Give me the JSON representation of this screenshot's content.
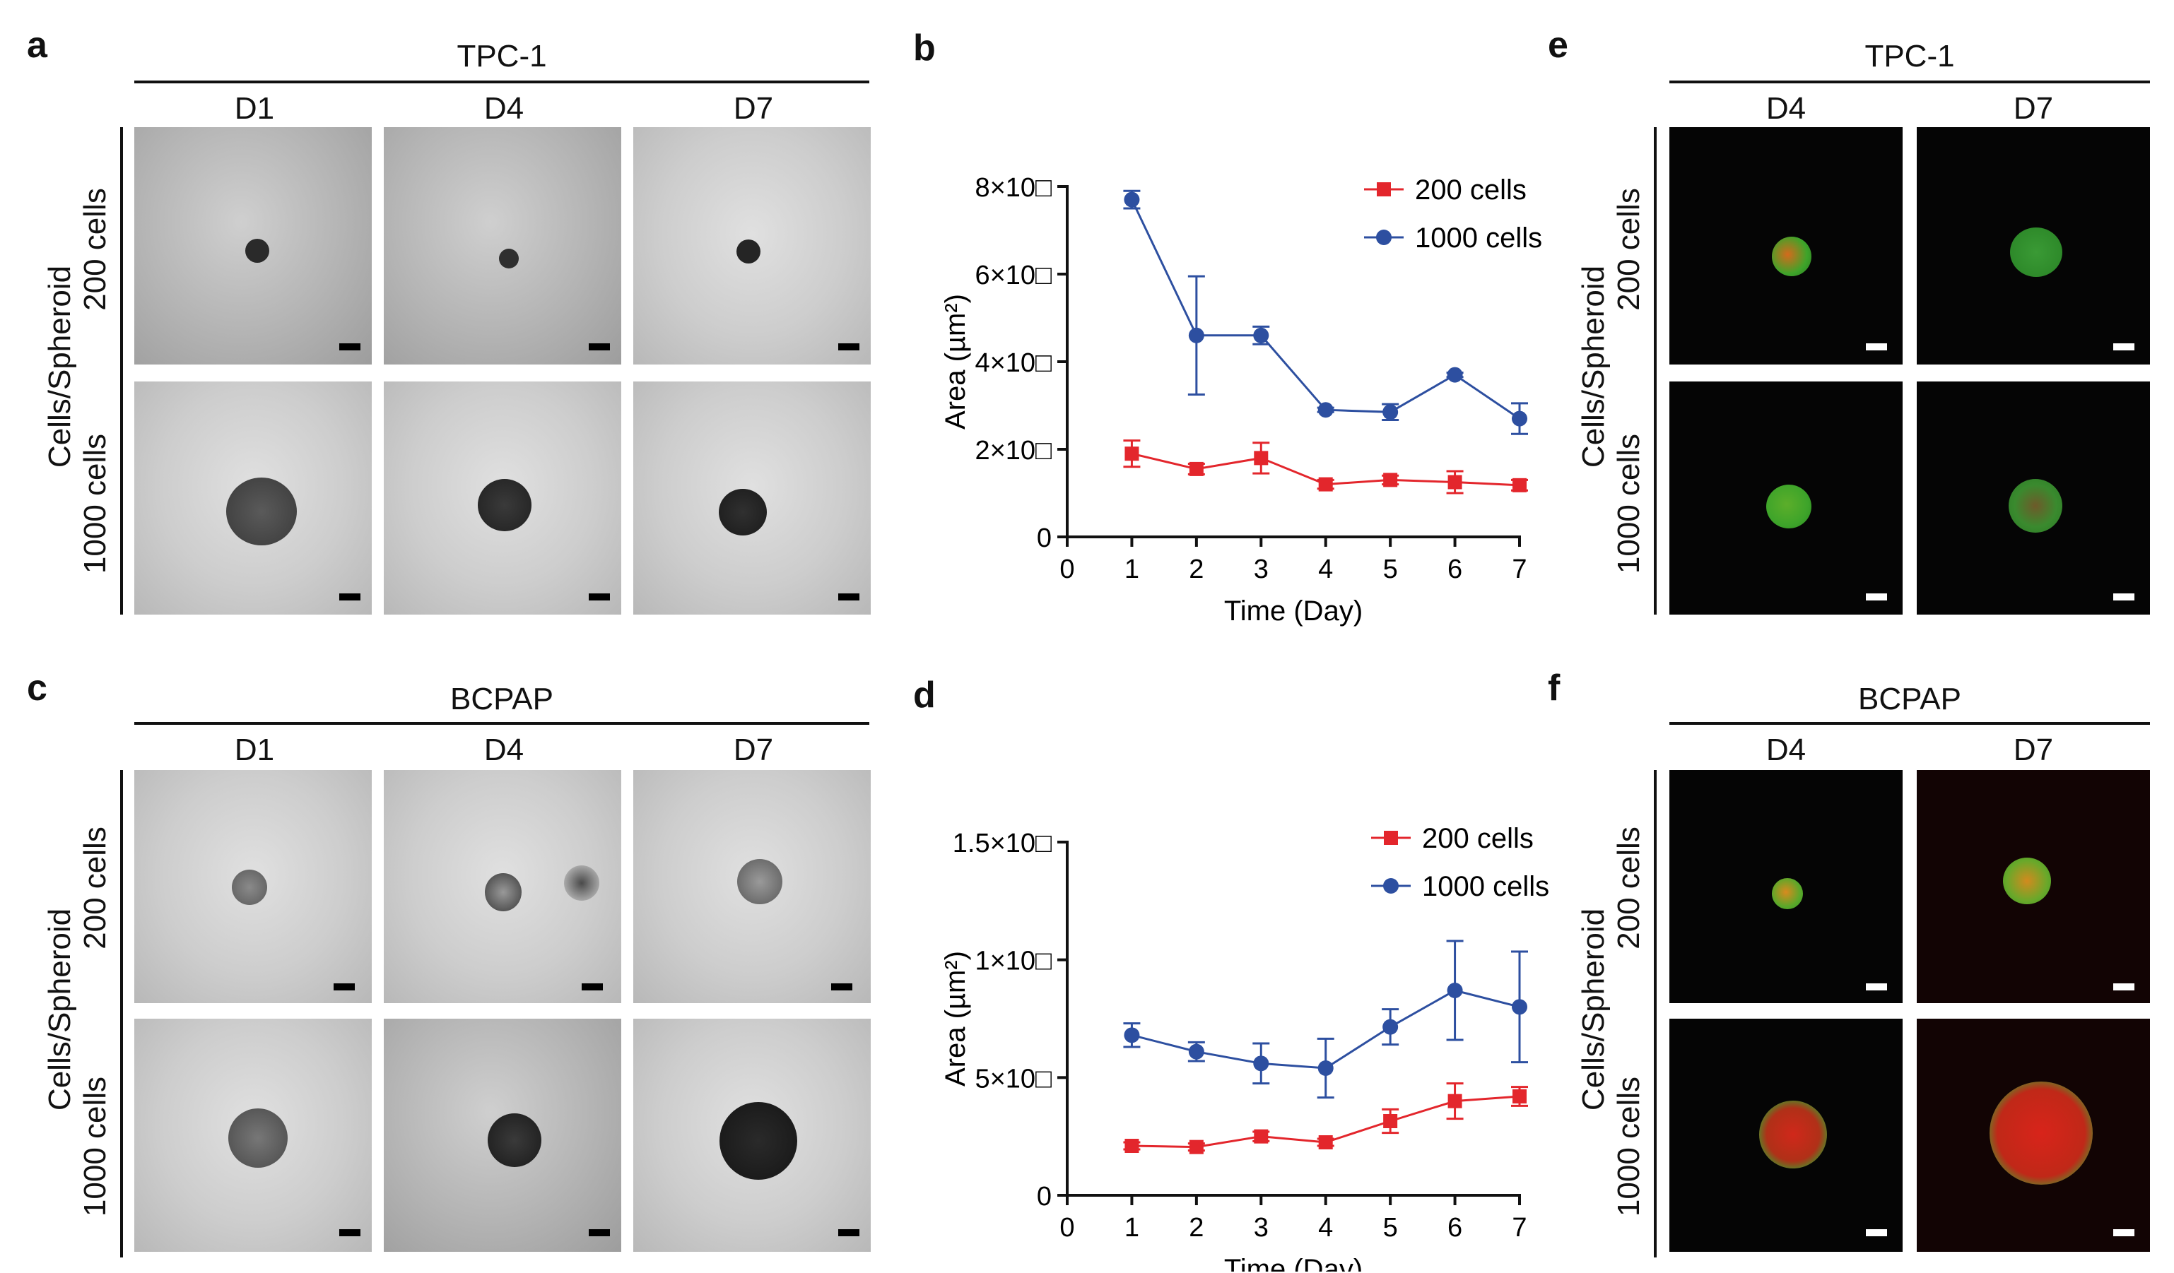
{
  "figure": {
    "panel_labels": {
      "a": "a",
      "b": "b",
      "c": "c",
      "d": "d",
      "e": "e",
      "f": "f"
    },
    "tpc1": "TPC-1",
    "bcpap": "BCPAP",
    "row_axis_label": "Cells/Spheroid",
    "row_200": "200 cells",
    "row_1000": "1000 cells",
    "bf_days": [
      "D1",
      "D4",
      "D7"
    ],
    "fl_days": [
      "D4",
      "D7"
    ]
  },
  "chart_data": [
    {
      "type": "line",
      "panel": "b",
      "title": "",
      "xlabel": "Time (Day)",
      "ylabel": "Area (µm²)",
      "x": [
        1,
        2,
        3,
        4,
        5,
        6,
        7
      ],
      "xticks": [
        "0",
        "1",
        "2",
        "3",
        "4",
        "5",
        "6",
        "7"
      ],
      "xlim": [
        0,
        7
      ],
      "ylim": [
        0,
        80000
      ],
      "yticks": [
        0,
        20000,
        40000,
        60000,
        80000
      ],
      "ytick_labels": [
        "0",
        "2×10□",
        "4×10□",
        "6×10□",
        "8×10□"
      ],
      "legend_position": "top-right",
      "series": [
        {
          "name": "200 cells",
          "color": "#e3262c",
          "marker": "square",
          "values": [
            19000,
            15500,
            18000,
            12000,
            13000,
            12500,
            11800
          ],
          "errors": [
            3000,
            1200,
            3500,
            1000,
            1000,
            2500,
            1200
          ]
        },
        {
          "name": "1000 cells",
          "color": "#2d4fa0",
          "marker": "circle",
          "values": [
            77000,
            46000,
            46000,
            29000,
            28500,
            37000,
            27000
          ],
          "errors": [
            2000,
            13500,
            2000,
            500,
            1800,
            500,
            3500
          ]
        }
      ]
    },
    {
      "type": "line",
      "panel": "d",
      "title": "",
      "xlabel": "Time (Day)",
      "ylabel": "Area (µm²)",
      "x": [
        1,
        2,
        3,
        4,
        5,
        6,
        7
      ],
      "xticks": [
        "0",
        "1",
        "2",
        "3",
        "4",
        "5",
        "6",
        "7"
      ],
      "xlim": [
        0,
        7
      ],
      "ylim": [
        0,
        150000
      ],
      "yticks": [
        0,
        50000,
        100000,
        150000
      ],
      "ytick_labels": [
        "0",
        "5×10□",
        "1×10□",
        "1.5×10□"
      ],
      "legend_position": "top-right",
      "series": [
        {
          "name": "200 cells",
          "color": "#e3262c",
          "marker": "square",
          "values": [
            21000,
            20500,
            25000,
            22500,
            31500,
            40000,
            42000
          ],
          "errors": [
            1500,
            1500,
            2000,
            1500,
            5000,
            7500,
            4000
          ]
        },
        {
          "name": "1000 cells",
          "color": "#2d4fa0",
          "marker": "circle",
          "values": [
            68000,
            61000,
            56000,
            54000,
            71500,
            87000,
            80000
          ],
          "errors": [
            5000,
            4000,
            8500,
            12500,
            7500,
            21000,
            23500
          ]
        }
      ]
    }
  ]
}
